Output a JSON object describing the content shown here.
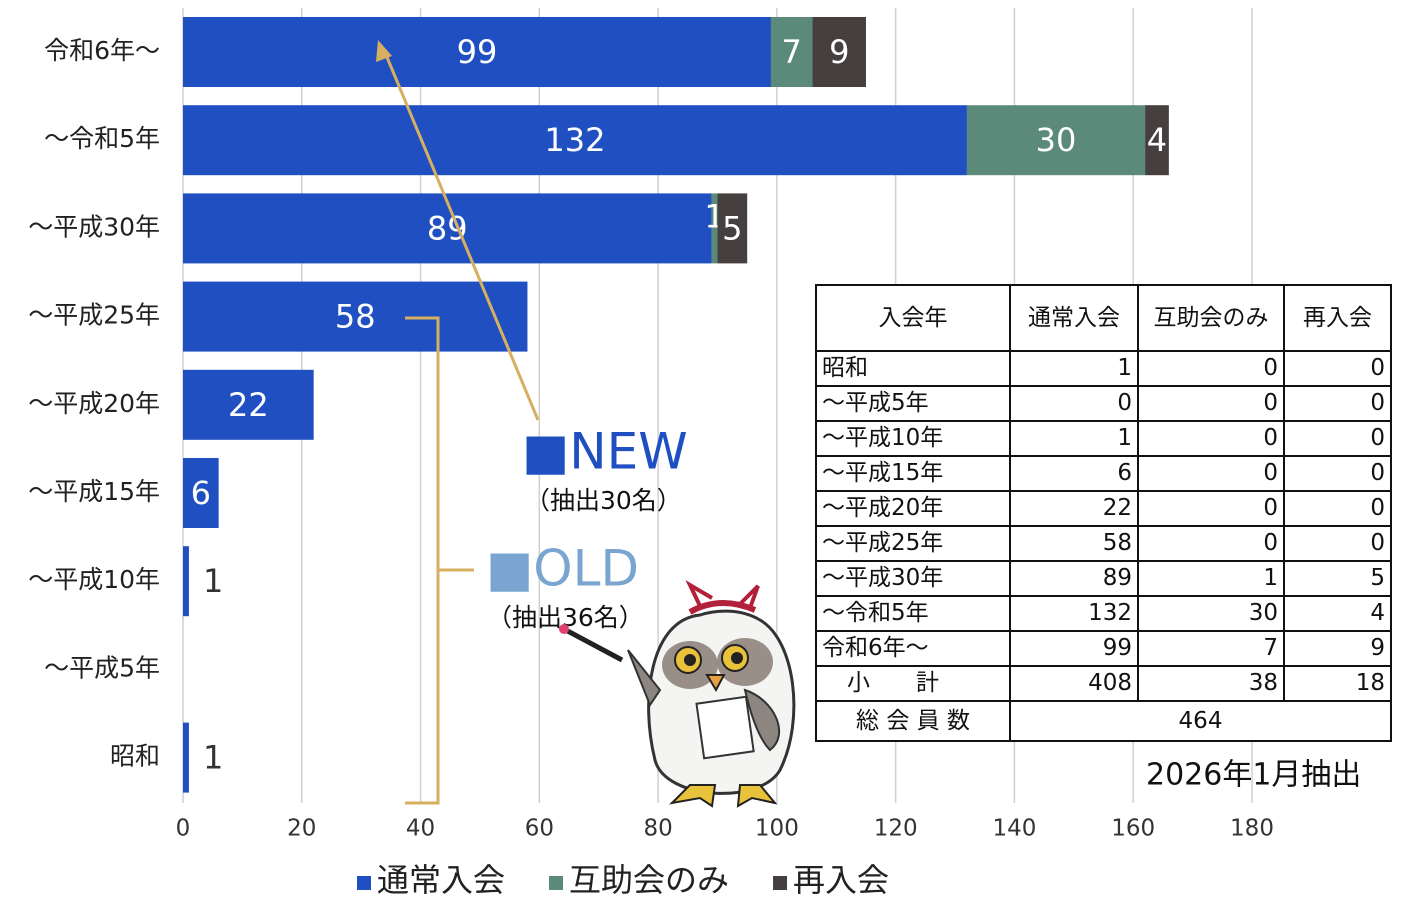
{
  "chart_data": {
    "type": "bar",
    "orientation": "horizontal",
    "stacked": true,
    "categories": [
      "令和6年〜",
      "〜令和5年",
      "〜平成30年",
      "〜平成25年",
      "〜平成20年",
      "〜平成15年",
      "〜平成10年",
      "〜平成5年",
      "昭和"
    ],
    "series": [
      {
        "name": "通常入会",
        "color": "#1f4fc1",
        "values": [
          99,
          132,
          89,
          58,
          22,
          6,
          1,
          0,
          1
        ]
      },
      {
        "name": "互助会のみ",
        "color": "#5b8a7b",
        "values": [
          7,
          30,
          1,
          0,
          0,
          0,
          0,
          0,
          0
        ]
      },
      {
        "name": "再入会",
        "color": "#45403f",
        "values": [
          9,
          4,
          5,
          0,
          0,
          0,
          0,
          0,
          0
        ]
      }
    ],
    "xlim": [
      0,
      180
    ],
    "xticks": [
      0,
      20,
      40,
      60,
      80,
      100,
      120,
      140,
      160,
      180
    ],
    "grid": true,
    "legend": "bottom",
    "annotations": [
      "■NEW",
      "（抽出30名）",
      "■OLD",
      "（抽出36名）",
      "2026年1月抽出"
    ]
  },
  "table": {
    "header": [
      "入会年",
      "通常入会",
      "互助会のみ",
      "再入会"
    ],
    "rows": [
      [
        "昭和",
        1,
        0,
        0
      ],
      [
        "〜平成5年",
        0,
        0,
        0
      ],
      [
        "〜平成10年",
        1,
        0,
        0
      ],
      [
        "〜平成15年",
        6,
        0,
        0
      ],
      [
        "〜平成20年",
        22,
        0,
        0
      ],
      [
        "〜平成25年",
        58,
        0,
        0
      ],
      [
        "〜平成30年",
        89,
        1,
        5
      ],
      [
        "〜令和5年",
        132,
        30,
        4
      ],
      [
        "令和6年〜",
        99,
        7,
        9
      ],
      [
        "小　　計",
        408,
        38,
        18
      ]
    ],
    "total": [
      "総 会 員 数",
      464
    ]
  }
}
